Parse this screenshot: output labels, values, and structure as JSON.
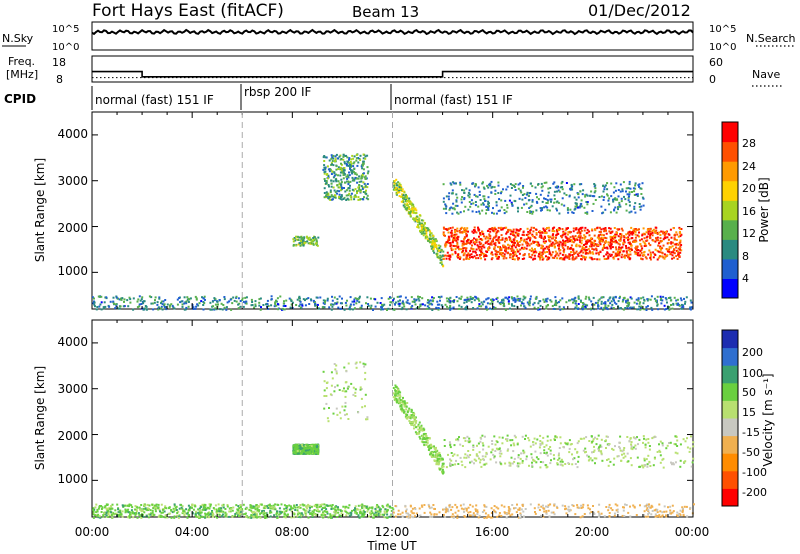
{
  "header": {
    "title": "Fort Hays East (fitACF)",
    "beam": "Beam 13",
    "date": "01/Dec/2012"
  },
  "nsky_panel": {
    "left_label": "N.Sky",
    "left_ticks": [
      "10^5",
      "10^0"
    ],
    "right_ticks": [
      "10^5",
      "10^0"
    ],
    "right_label": "N.Search"
  },
  "freq_panel": {
    "left_label_1": "Freq.",
    "left_label_2": "[MHz]",
    "left_ticks": [
      "18",
      "8"
    ],
    "right_ticks": [
      "60",
      "0"
    ],
    "right_label": "Nave"
  },
  "cpid": {
    "label": "CPID",
    "segments": [
      {
        "start": 0,
        "end": 6,
        "text": "normal (fast) 151 IF"
      },
      {
        "start": 6,
        "end": 12,
        "text": "rbsp 200 IF"
      },
      {
        "start": 12,
        "end": 24,
        "text": "normal (fast) 151 IF"
      }
    ]
  },
  "x_axis": {
    "tick_labels": [
      "00:00",
      "04:00",
      "08:00",
      "12:00",
      "16:00",
      "20:00",
      "00:00"
    ],
    "title": "Time UT"
  },
  "power_panel": {
    "ylabel": "Slant Range [km]",
    "y_ticks": [
      "4000",
      "3000",
      "2000",
      "1000"
    ],
    "colorbar_title": "Power [dB]",
    "colorbar_labels": [
      "28",
      "24",
      "20",
      "16",
      "12",
      "8",
      "4"
    ],
    "colorbar_colors": [
      "#0000ff",
      "#1f5fd0",
      "#2a8a80",
      "#58b04c",
      "#a8d420",
      "#ffd200",
      "#ff9a00",
      "#ff5000",
      "#ff0000"
    ]
  },
  "velocity_panel": {
    "ylabel": "Slant Range [km]",
    "y_ticks": [
      "4000",
      "3000",
      "2000",
      "1000"
    ],
    "colorbar_title": "Velocity [m s⁻¹]",
    "colorbar_labels": [
      "200",
      "100",
      "50",
      "15",
      "-15",
      "-50",
      "-100",
      "-200"
    ],
    "colorbar_colors": [
      "#1c2cb0",
      "#2f6fd0",
      "#3aa070",
      "#6ad040",
      "#b8e070",
      "#c8c8c0",
      "#f0b050",
      "#ff8c00",
      "#ff5000",
      "#ff0000"
    ]
  },
  "chart_data": [
    {
      "type": "line",
      "name": "noise",
      "x": [
        0,
        24
      ],
      "y_log10": [
        4.6,
        4.6
      ],
      "x_units": "hours UT"
    },
    {
      "type": "line",
      "name": "frequency",
      "x": [
        0,
        2,
        2,
        14,
        14,
        24
      ],
      "freq_mhz": [
        12,
        12,
        10,
        10,
        12,
        12
      ],
      "nave": [
        10,
        10,
        10,
        10,
        10,
        10
      ]
    },
    {
      "type": "heatmap",
      "name": "power",
      "x_range": [
        0,
        24
      ],
      "y_range": [
        200,
        4500
      ],
      "regions": [
        {
          "t": [
            0,
            24
          ],
          "r": [
            200,
            500
          ],
          "value_db": 8
        },
        {
          "t": [
            9.2,
            11
          ],
          "r": [
            2600,
            3600
          ],
          "value_db": 10
        },
        {
          "t": [
            8,
            9
          ],
          "r": [
            1600,
            1800
          ],
          "value_db": 12
        },
        {
          "t": [
            14,
            23.5
          ],
          "r": [
            1300,
            2000
          ],
          "value_db": 26
        },
        {
          "t": [
            14,
            22
          ],
          "r": [
            2300,
            3000
          ],
          "value_db": 8
        },
        {
          "t": [
            12,
            14
          ],
          "r": [
            1200,
            3000
          ],
          "value_db": 14
        }
      ],
      "colorbar": {
        "label": "Power [dB]",
        "range": [
          0,
          30
        ]
      }
    },
    {
      "type": "heatmap",
      "name": "velocity",
      "x_range": [
        0,
        24
      ],
      "y_range": [
        200,
        4500
      ],
      "regions": [
        {
          "t": [
            0,
            12
          ],
          "r": [
            200,
            500
          ],
          "value_ms": 30
        },
        {
          "t": [
            12,
            24
          ],
          "r": [
            200,
            500
          ],
          "value_ms": -60
        },
        {
          "t": [
            9.2,
            11
          ],
          "r": [
            2300,
            3600
          ],
          "value_ms": 0
        },
        {
          "t": [
            8,
            9
          ],
          "r": [
            1600,
            1800
          ],
          "value_ms": 40
        },
        {
          "t": [
            14,
            24
          ],
          "r": [
            1300,
            2000
          ],
          "value_ms": 0
        },
        {
          "t": [
            12,
            14
          ],
          "r": [
            1200,
            3000
          ],
          "value_ms": 20
        }
      ],
      "colorbar": {
        "label": "Velocity [m s⁻¹]",
        "range": [
          -200,
          200
        ]
      }
    }
  ]
}
